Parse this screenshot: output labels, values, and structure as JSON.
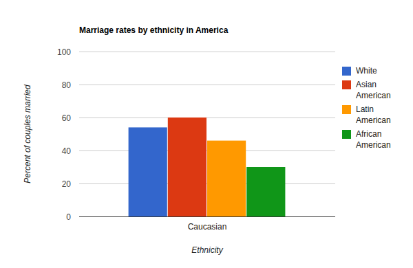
{
  "chart_data": {
    "type": "bar",
    "title": "Marriage rates by ethnicity in America",
    "x_label": "Ethnicity",
    "y_label": "Percent of couples married",
    "categories": [
      "Caucasian"
    ],
    "series": [
      {
        "name": "White",
        "color": "#3366cc",
        "values": [
          54
        ]
      },
      {
        "name": "Asian American",
        "color": "#dc3912",
        "values": [
          60
        ]
      },
      {
        "name": "Latin American",
        "color": "#ff9900",
        "values": [
          46
        ]
      },
      {
        "name": "African American",
        "color": "#109618",
        "values": [
          30
        ]
      }
    ],
    "ylim": [
      0,
      100
    ],
    "yticks": [
      0,
      20,
      40,
      60,
      80,
      100
    ],
    "grid": true,
    "legend": "right"
  }
}
